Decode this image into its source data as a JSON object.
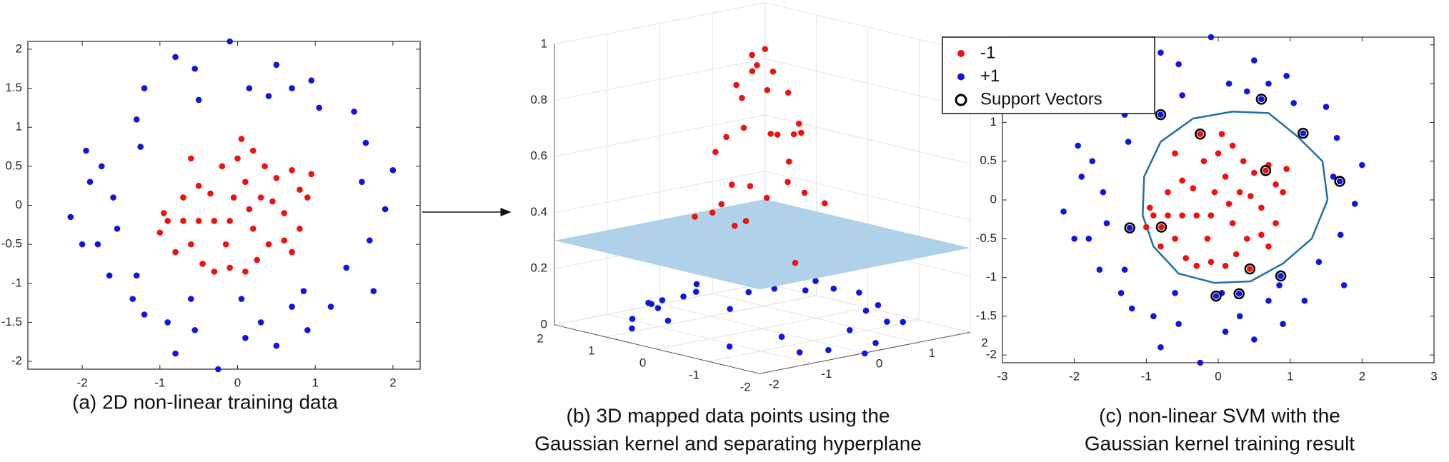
{
  "chart_data": [
    {
      "type": "scatter",
      "caption": [
        "(a) 2D non-linear training data"
      ],
      "xlim": [
        -2.7,
        2.35
      ],
      "ylim": [
        -2.1,
        2.1
      ],
      "xticks": [
        -2,
        -1,
        0,
        1,
        2
      ],
      "yticks": [
        -2,
        -1.5,
        -1,
        -0.5,
        0,
        0.5,
        1,
        1.5,
        2
      ],
      "series": [
        {
          "color": "#ee1111",
          "marker": "dot",
          "x": [
            -0.9,
            -0.7,
            -0.5,
            -0.3,
            -0.1,
            -1.0,
            -0.95,
            -0.6,
            -0.7,
            -0.6,
            -0.45,
            -0.3,
            -0.1,
            0.1,
            0.25,
            0.4,
            0.6,
            0.8,
            0.9,
            0.95,
            0.7,
            0.5,
            0.3,
            0.1,
            0.0,
            0.05,
            0.2,
            -0.2,
            -0.35,
            -0.15,
            0.2,
            0.45,
            0.6,
            0.8,
            -0.8,
            0.35,
            -0.5,
            0.15,
            -0.05,
            0.7
          ],
          "y": [
            -0.2,
            -0.2,
            -0.2,
            -0.2,
            -0.2,
            -0.35,
            -0.1,
            0.6,
            0.1,
            -0.5,
            -0.75,
            -0.85,
            -0.8,
            -0.85,
            -0.7,
            -0.5,
            -0.45,
            -0.3,
            0.1,
            0.4,
            0.45,
            0.35,
            0.1,
            0.3,
            0.6,
            0.85,
            0.7,
            0.5,
            0.15,
            -0.5,
            -0.3,
            0.05,
            -0.1,
            0.2,
            -0.6,
            0.5,
            0.25,
            -0.05,
            0.1,
            -0.6
          ]
        },
        {
          "color": "#1414e0",
          "marker": "dot",
          "x": [
            -2.15,
            -1.9,
            -2.0,
            -1.95,
            -1.75,
            -1.6,
            -1.55,
            -1.8,
            -1.65,
            -1.3,
            -1.35,
            -1.2,
            -0.9,
            -0.6,
            -0.55,
            -0.8,
            -0.25,
            0.1,
            0.05,
            0.3,
            0.5,
            0.7,
            0.9,
            0.85,
            1.2,
            1.4,
            1.75,
            1.7,
            1.6,
            1.65,
            2.0,
            1.9,
            1.5,
            1.05,
            0.95,
            0.7,
            0.5,
            0.15,
            -0.1,
            -0.55,
            -0.5,
            -0.8,
            -1.2,
            -1.3,
            -1.25,
            0.4
          ],
          "y": [
            -0.15,
            0.3,
            -0.5,
            0.7,
            0.5,
            0.1,
            -0.3,
            -0.5,
            -0.9,
            -0.9,
            -1.2,
            -1.4,
            -1.5,
            -1.2,
            -1.6,
            -1.9,
            -2.1,
            -1.7,
            -1.2,
            -1.5,
            -1.8,
            -1.3,
            -1.6,
            -1.1,
            -1.3,
            -0.8,
            -1.1,
            -0.45,
            0.3,
            0.8,
            0.45,
            -0.05,
            1.2,
            1.25,
            1.6,
            1.5,
            1.8,
            1.5,
            2.1,
            1.75,
            1.35,
            1.9,
            1.5,
            1.1,
            0.75,
            1.4
          ]
        }
      ]
    },
    {
      "type": "scatter3d",
      "caption": [
        "(b) 3D mapped data points using the",
        "Gaussian kernel and separating hyperplane"
      ],
      "xlim": [
        -2,
        2
      ],
      "ylim": [
        -2,
        2
      ],
      "zlim": [
        0,
        1
      ],
      "xticks": [
        -2,
        -1,
        0,
        1,
        2
      ],
      "yticks": [
        -2,
        -1,
        0,
        1,
        2
      ],
      "zticks": [
        0,
        0.2,
        0.4,
        0.6,
        0.8,
        1
      ],
      "plane_z": 0.3,
      "plane_color": "#a6cde8",
      "series": [
        {
          "color": "#1414e0",
          "layer": "below",
          "x": [
            -2.15,
            -1.9,
            -1.6,
            -1.65,
            -1.3,
            -0.9,
            -0.6,
            0.05,
            0.3,
            0.7,
            1.2,
            1.4,
            1.7,
            1.6,
            2.0,
            1.5,
            1.05,
            0.7,
            0.15,
            -0.5,
            -1.2,
            -1.3,
            -1.25,
            0.4,
            -0.1,
            0.9,
            -1.8,
            1.9
          ],
          "y": [
            -0.15,
            0.3,
            0.1,
            -0.9,
            -0.9,
            -1.5,
            -1.2,
            -1.2,
            -1.5,
            -1.3,
            -1.3,
            -0.8,
            -0.45,
            0.3,
            0.45,
            1.2,
            1.25,
            1.5,
            1.5,
            1.35,
            1.5,
            1.1,
            0.75,
            1.4,
            2.1,
            -1.6,
            -0.5,
            -0.05
          ],
          "z": [
            0.01,
            0.02,
            0.06,
            0.02,
            0.06,
            0.03,
            0.14,
            0.2,
            0.07,
            0.09,
            0.03,
            0.06,
            0.03,
            0.05,
            0.01,
            0.02,
            0.05,
            0.05,
            0.08,
            0.1,
            0.02,
            0.04,
            0.09,
            0.1,
            0.01,
            0.02,
            0.02,
            0.02
          ]
        },
        {
          "color": "#ee1111",
          "layer": "above",
          "x": [
            0.05,
            0.15,
            -0.1,
            0.3,
            -0.3,
            0.2,
            0.1,
            -0.35,
            0.45,
            -0.2,
            -0.15,
            0.6,
            -0.5,
            0.35,
            0.0,
            -0.5,
            0.4,
            0.8,
            -0.7,
            0.2,
            0.7,
            -0.6,
            0.9,
            -0.45,
            0.1,
            -0.6,
            0.95,
            -1.0,
            0.7,
            0.05
          ],
          "y": [
            0.1,
            -0.05,
            -0.2,
            0.1,
            -0.2,
            -0.3,
            0.3,
            0.15,
            0.05,
            0.5,
            -0.5,
            -0.1,
            -0.2,
            0.5,
            0.6,
            0.25,
            -0.5,
            0.2,
            -0.2,
            0.7,
            0.45,
            -0.5,
            0.1,
            -0.75,
            -0.85,
            0.6,
            0.4,
            -0.35,
            -0.6,
            0.85
          ],
          "z": [
            0.99,
            0.97,
            0.95,
            0.9,
            0.87,
            0.87,
            0.9,
            0.85,
            0.8,
            0.72,
            0.74,
            0.66,
            0.72,
            0.66,
            0.67,
            0.71,
            0.63,
            0.47,
            0.56,
            0.56,
            0.46,
            0.51,
            0.4,
            0.43,
            0.44,
            0.45,
            0.31,
            0.29,
            0.39,
            0.45
          ]
        }
      ]
    },
    {
      "type": "scatter",
      "caption": [
        "(c) non-linear SVM with the",
        "Gaussian kernel training result"
      ],
      "xlim": [
        -3,
        3
      ],
      "ylim": [
        -2.1,
        2.1
      ],
      "xticks": [
        -3,
        -2,
        -1,
        0,
        1,
        2,
        3
      ],
      "yticks": [
        -2,
        -1.5,
        -1,
        -0.5,
        0,
        0.5,
        1,
        1.5,
        2
      ],
      "boundary": {
        "color": "#1f6fa8",
        "x": [
          1.52,
          1.45,
          1.1,
          0.7,
          0.2,
          -0.35,
          -0.8,
          -1.03,
          -1.05,
          -0.9,
          -0.55,
          -0.05,
          0.45,
          0.9,
          1.3,
          1.52
        ],
        "y": [
          0.0,
          0.5,
          0.82,
          1.12,
          1.14,
          1.05,
          0.75,
          0.3,
          -0.2,
          -0.6,
          -0.95,
          -1.07,
          -1.05,
          -0.82,
          -0.5,
          0.0
        ]
      },
      "series": [
        {
          "name": "-1",
          "color": "#ee1111",
          "marker": "dot",
          "x": [
            -0.9,
            -0.7,
            -0.5,
            -0.3,
            -0.1,
            -1.0,
            -0.95,
            -0.6,
            -0.7,
            -0.6,
            -0.45,
            -0.3,
            -0.1,
            0.1,
            0.25,
            0.4,
            0.6,
            0.8,
            0.9,
            0.95,
            0.7,
            0.5,
            0.3,
            0.1,
            0.0,
            0.05,
            0.2,
            -0.2,
            -0.35,
            -0.15,
            0.2,
            0.45,
            0.6,
            0.8,
            -0.8,
            0.35,
            -0.5,
            0.15,
            -0.05,
            0.7,
            -0.25,
            0.66,
            -0.79,
            0.44
          ],
          "y": [
            -0.2,
            -0.2,
            -0.2,
            -0.2,
            -0.2,
            -0.35,
            -0.1,
            0.6,
            0.1,
            -0.5,
            -0.75,
            -0.85,
            -0.8,
            -0.85,
            -0.7,
            -0.5,
            -0.45,
            -0.3,
            0.1,
            0.4,
            0.45,
            0.35,
            0.1,
            0.3,
            0.6,
            0.85,
            0.7,
            0.5,
            0.15,
            -0.5,
            -0.3,
            0.05,
            -0.1,
            0.2,
            -0.6,
            0.5,
            0.25,
            -0.05,
            0.1,
            -0.6,
            0.85,
            0.38,
            -0.35,
            -0.89
          ]
        },
        {
          "name": "+1",
          "color": "#1414e0",
          "marker": "dot",
          "x": [
            -2.15,
            -1.9,
            -2.0,
            -1.95,
            -1.75,
            -1.6,
            -1.55,
            -1.8,
            -1.65,
            -1.3,
            -1.35,
            -1.2,
            -0.9,
            -0.6,
            -0.55,
            -0.8,
            -0.25,
            0.1,
            0.05,
            0.3,
            0.5,
            0.7,
            0.9,
            0.85,
            1.2,
            1.4,
            1.75,
            1.7,
            1.6,
            1.65,
            2.0,
            1.9,
            1.5,
            1.05,
            0.95,
            0.7,
            0.5,
            0.15,
            -0.1,
            -0.55,
            -0.5,
            -0.8,
            -1.2,
            -1.3,
            -1.25,
            0.4,
            -0.8,
            0.6,
            1.18,
            1.69,
            -1.23,
            0.87,
            -0.03,
            0.29
          ],
          "y": [
            -0.15,
            0.3,
            -0.5,
            0.7,
            0.5,
            0.1,
            -0.3,
            -0.5,
            -0.9,
            -0.9,
            -1.2,
            -1.4,
            -1.5,
            -1.2,
            -1.6,
            -1.9,
            -2.1,
            -1.7,
            -1.2,
            -1.5,
            -1.8,
            -1.3,
            -1.6,
            -1.1,
            -1.3,
            -0.8,
            -1.1,
            -0.45,
            0.3,
            0.8,
            0.45,
            -0.05,
            1.2,
            1.25,
            1.6,
            1.5,
            1.8,
            1.5,
            2.1,
            1.75,
            1.35,
            1.9,
            1.5,
            1.1,
            0.75,
            1.4,
            1.1,
            1.3,
            0.86,
            0.24,
            -0.36,
            -0.98,
            -1.24,
            -1.21
          ]
        },
        {
          "name": "Support Vectors",
          "color": "#000000",
          "marker": "ring",
          "x": [
            -0.8,
            0.6,
            1.18,
            1.69,
            -1.23,
            0.87,
            -0.03,
            0.29,
            -0.25,
            0.66,
            -0.79,
            0.44
          ],
          "y": [
            1.1,
            1.3,
            0.86,
            0.24,
            -0.36,
            -0.98,
            -1.24,
            -1.21,
            0.85,
            0.38,
            -0.35,
            -0.89
          ]
        }
      ]
    }
  ]
}
